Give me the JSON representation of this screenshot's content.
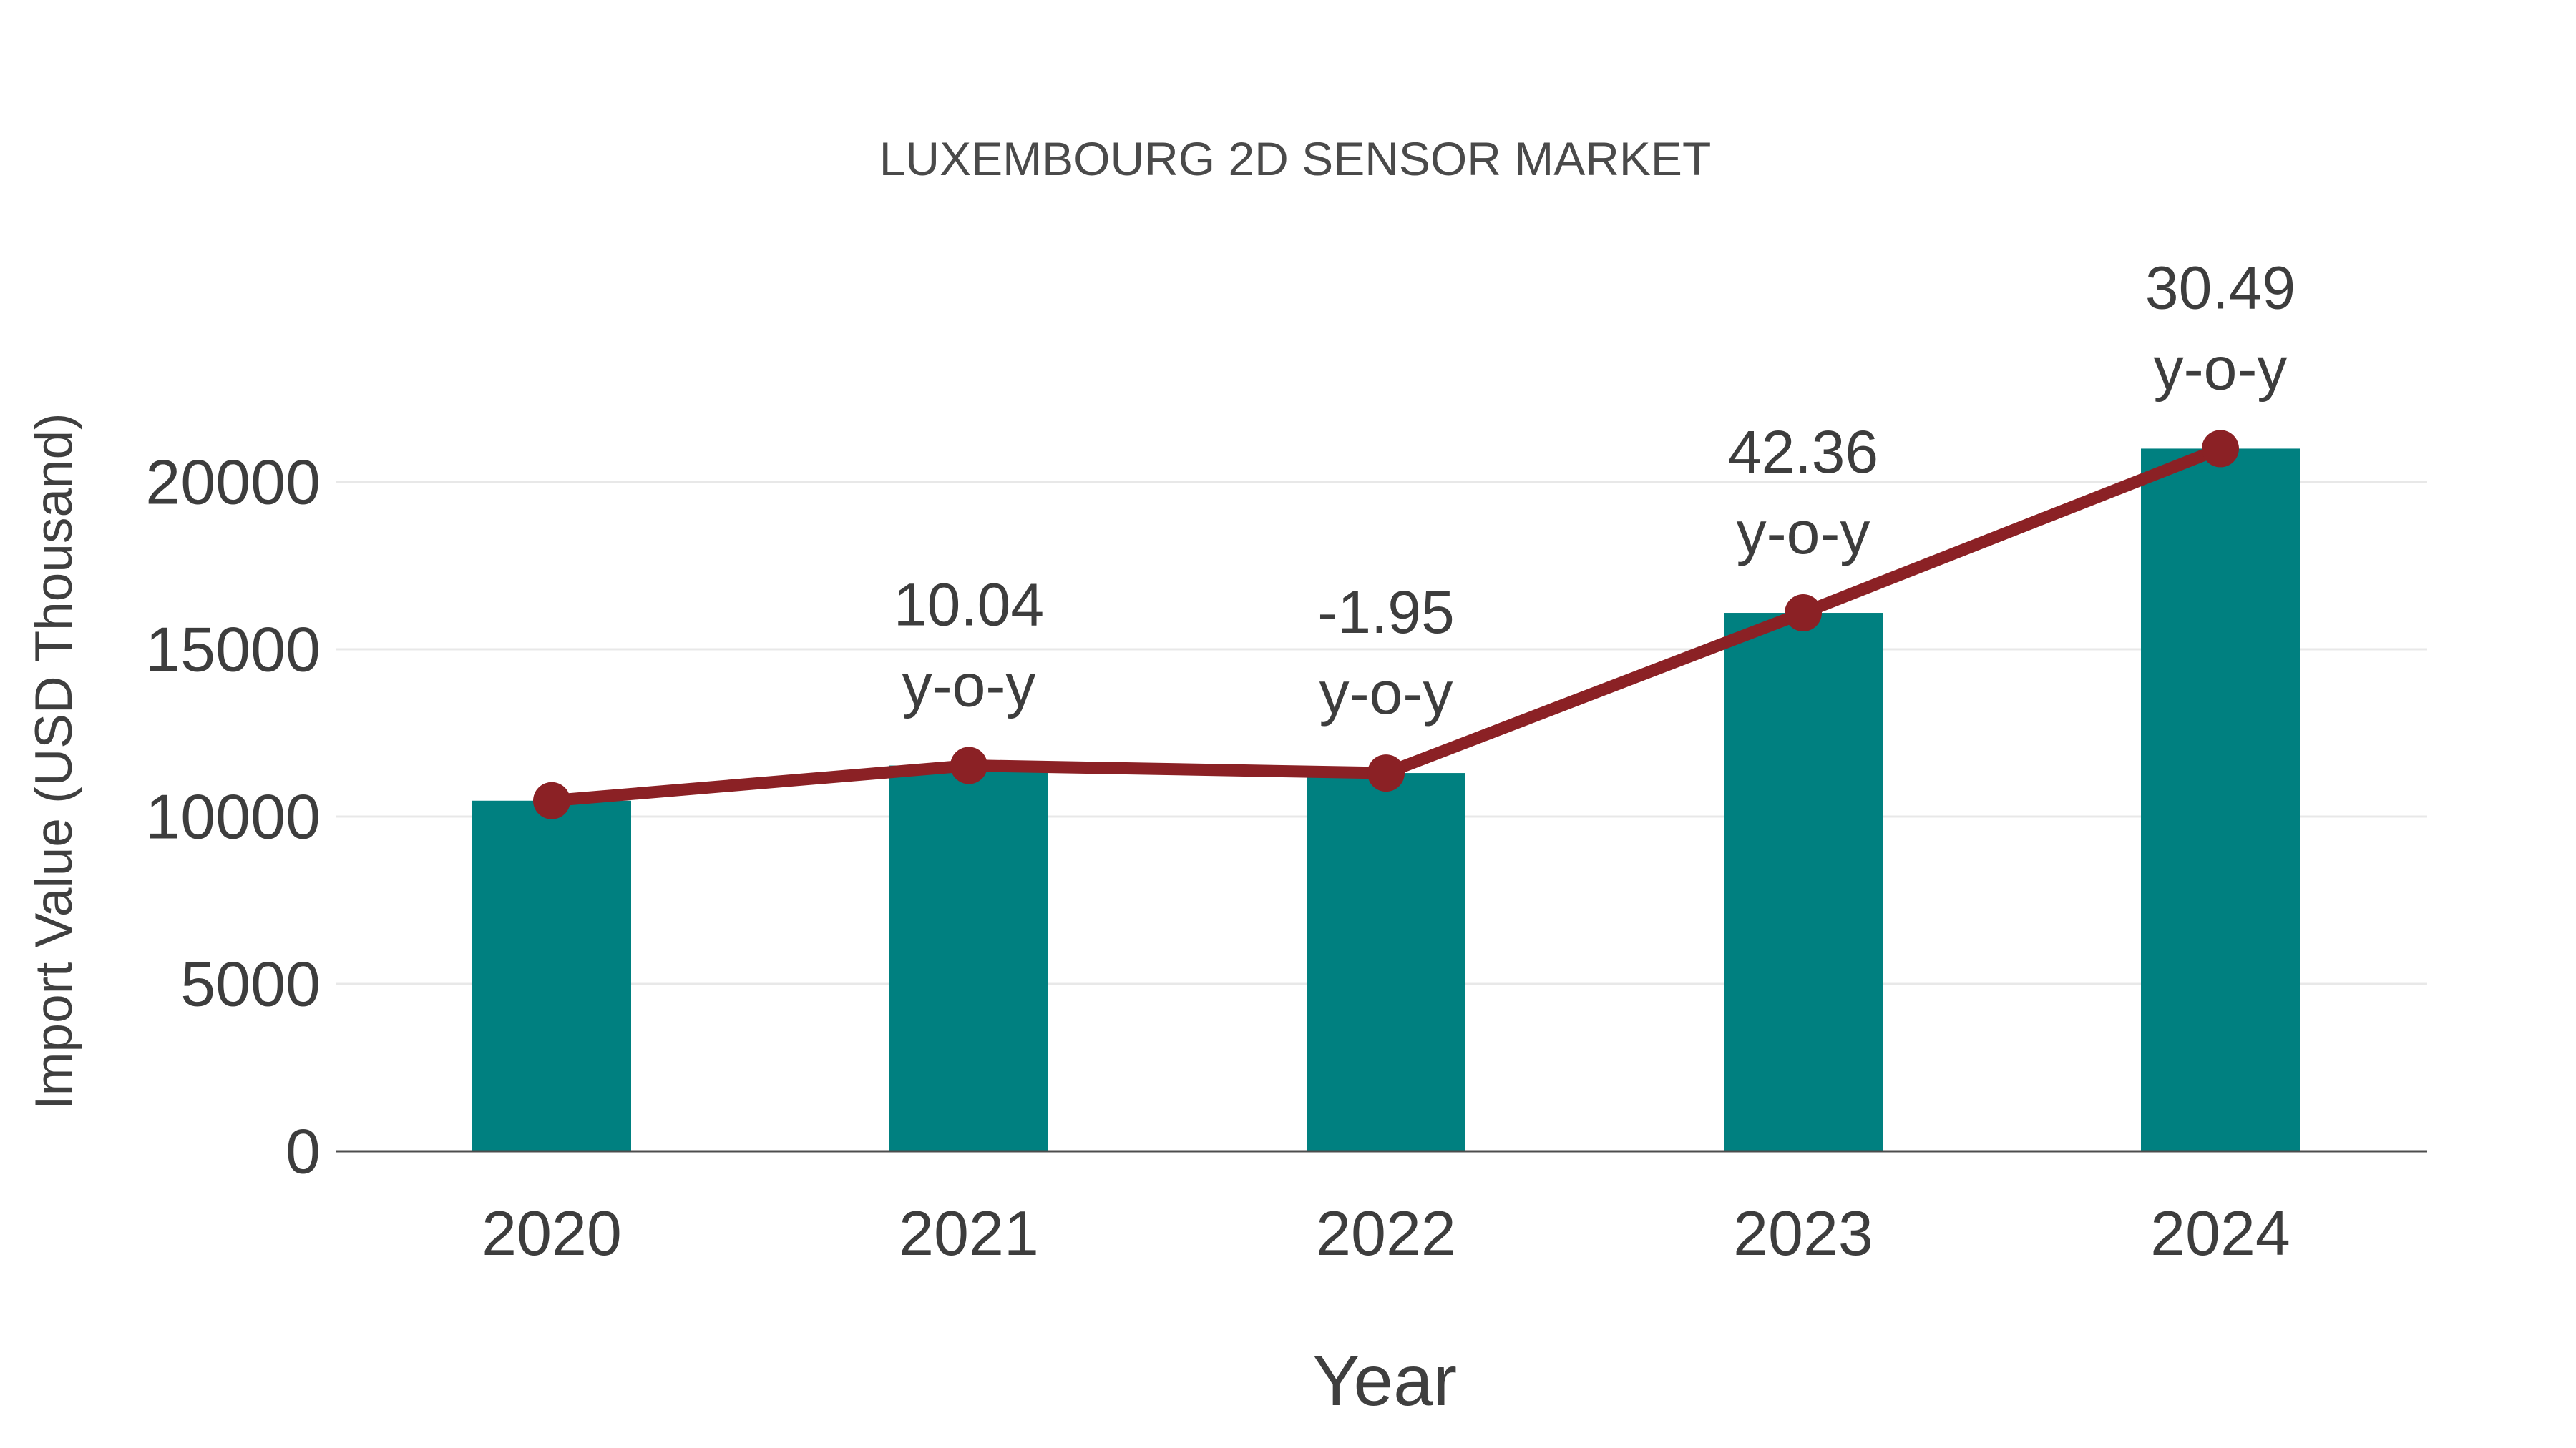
{
  "page": {
    "background": "#ffffff"
  },
  "chart_data": {
    "type": "bar",
    "title": "LUXEMBOURG 2D SENSOR MARKET",
    "xlabel": "Year",
    "ylabel": "Import Value (USD Thousand)",
    "categories": [
      "2020",
      "2021",
      "2022",
      "2023",
      "2024"
    ],
    "series": [
      {
        "name": "Import Value bars",
        "type": "bar",
        "color": "#008080",
        "values": [
          10475,
          11527,
          11302,
          16089,
          20995
        ]
      },
      {
        "name": "Import Value trend line",
        "type": "line",
        "color": "#8b2125",
        "values": [
          10475,
          11527,
          11302,
          16089,
          20995
        ]
      }
    ],
    "annotations": [
      {
        "category": "2021",
        "value_label": "10.04",
        "suffix": "y-o-y"
      },
      {
        "category": "2022",
        "value_label": "-1.95",
        "suffix": "y-o-y"
      },
      {
        "category": "2023",
        "value_label": "42.36",
        "suffix": "y-o-y"
      },
      {
        "category": "2024",
        "value_label": "30.49",
        "suffix": "y-o-y"
      }
    ],
    "yticks": [
      0,
      5000,
      10000,
      15000,
      20000
    ],
    "ylim": [
      0,
      22000
    ],
    "grid": "horizontal-only",
    "legend": "none",
    "colors": {
      "bar": "#008080",
      "line": "#8b2125",
      "marker": "#8b2125",
      "gridline": "#e8e8e8",
      "axis_line": "#4d4d4d",
      "tick_text": "#3d3d3d",
      "title_text": "#4a4a4a"
    }
  }
}
